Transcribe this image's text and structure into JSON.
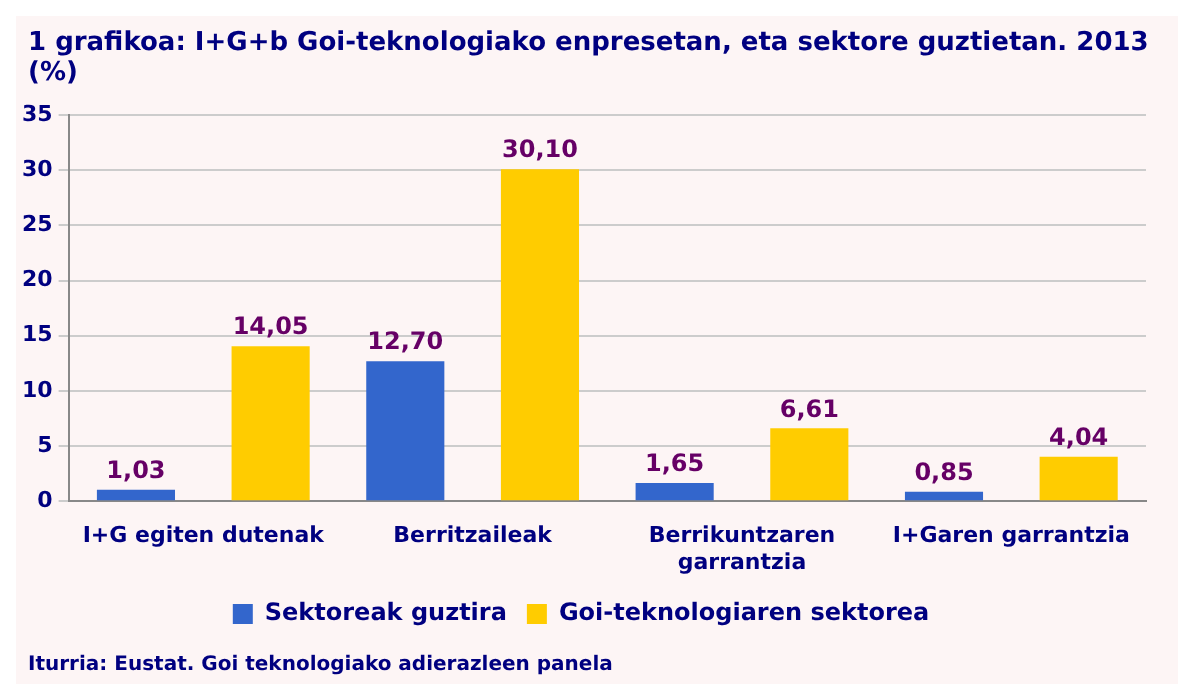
{
  "chart_data": {
    "type": "bar",
    "title": "1 grafikoa: I+G+b Goi-teknologiako enpresetan, eta sektore guztietan. 2013 (%)",
    "categories": [
      "I+G egiten dutenak",
      "Berritzaileak",
      "Berrikuntzaren garrantzia",
      "I+Garen garrantzia"
    ],
    "series": [
      {
        "name": "Sektoreak guztira",
        "color": "#3366cc",
        "values": [
          1.03,
          12.7,
          1.65,
          0.85
        ],
        "value_labels": [
          "1,03",
          "12,70",
          "1,65",
          "0,85"
        ]
      },
      {
        "name": "Goi-teknologiaren sektorea",
        "color": "#ffcc00",
        "values": [
          14.05,
          30.1,
          6.61,
          4.04
        ],
        "value_labels": [
          "14,05",
          "30,10",
          "6,61",
          "4,04"
        ]
      }
    ],
    "ylim": [
      0,
      35
    ],
    "yticks": [
      0,
      5,
      10,
      15,
      20,
      25,
      30,
      35
    ],
    "grid": "y",
    "legend": "bottom",
    "annotations": [
      "Iturria: Eustat. Goi teknologiako adierazleen panela"
    ]
  }
}
